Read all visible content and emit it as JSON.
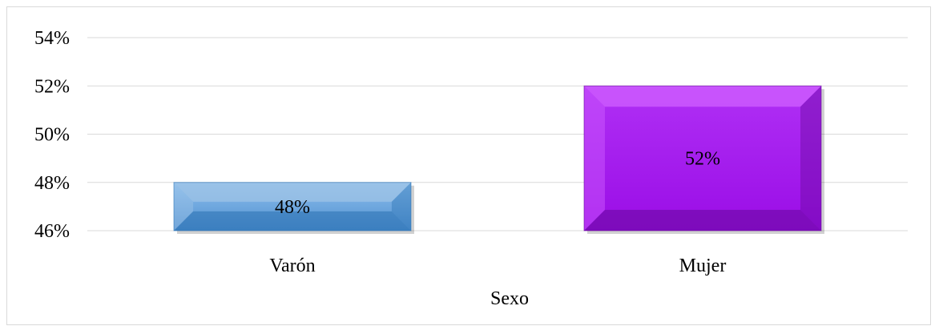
{
  "chart_data": {
    "type": "bar",
    "categories": [
      "Varón",
      "Mujer"
    ],
    "values": [
      48,
      52
    ],
    "data_labels": [
      "48%",
      "52%"
    ],
    "title": "",
    "xlabel": "Sexo",
    "ylabel": "",
    "ylim": [
      46,
      54
    ],
    "yticks": [
      46,
      48,
      50,
      52,
      54
    ],
    "ytick_labels": [
      "46%",
      "48%",
      "50%",
      "52%",
      "54%"
    ],
    "grid": true,
    "legend": "none",
    "colors": {
      "bar_varon": "#5b9bd5",
      "bar_varon_light": "#9dc3e6",
      "bar_varon_dark": "#2e75b6",
      "bar_mujer": "#9b0fe0",
      "bar_mujer_light": "#d060ff",
      "bar_mujer_dark": "#6a0aa0",
      "gridline": "#d9d9d9"
    }
  }
}
